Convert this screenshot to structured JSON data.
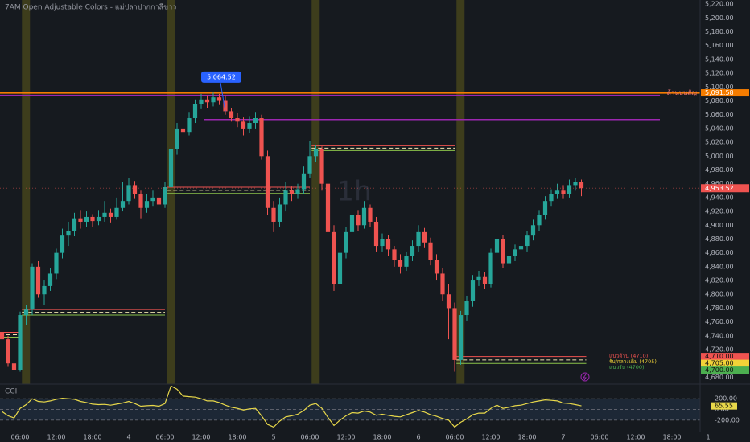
{
  "header": {
    "title": "7AM Open Adjustable Colors - แม่ปลาปากกาสีขาว"
  },
  "chart_data": {
    "type": "candlestick",
    "watermark": "1h",
    "up_color": "#26a69a",
    "down_color": "#ef5350",
    "xlim": [
      -3.333,
      114
    ],
    "xticks": [
      {
        "value": 0,
        "label": "06:00"
      },
      {
        "value": 6,
        "label": "12:00"
      },
      {
        "value": 12,
        "label": "18:00"
      },
      {
        "value": 18,
        "label": "4"
      },
      {
        "value": 24,
        "label": "06:00"
      },
      {
        "value": 30,
        "label": "12:00"
      },
      {
        "value": 36,
        "label": "18:00"
      },
      {
        "value": 42,
        "label": "5"
      },
      {
        "value": 48,
        "label": "06:00"
      },
      {
        "value": 54,
        "label": "12:00"
      },
      {
        "value": 60,
        "label": "18:00"
      },
      {
        "value": 66,
        "label": "6"
      },
      {
        "value": 72,
        "label": "06:00"
      },
      {
        "value": 78,
        "label": "12:00"
      },
      {
        "value": 84,
        "label": "18:00"
      },
      {
        "value": 90,
        "label": "7"
      },
      {
        "value": 96,
        "label": "06:00"
      },
      {
        "value": 102,
        "label": "12:00"
      },
      {
        "value": 108,
        "label": "18:00"
      },
      {
        "value": 114,
        "label": "1"
      }
    ],
    "ylim": [
      4670,
      5226
    ],
    "yticks": [
      {
        "value": 4680,
        "label": "4,680.00"
      },
      {
        "value": 4700,
        "label": "4,700.00"
      },
      {
        "value": 4720,
        "label": "4,720.00"
      },
      {
        "value": 4740,
        "label": "4,740.00"
      },
      {
        "value": 4760,
        "label": "4,760.00"
      },
      {
        "value": 4780,
        "label": "4,780.00"
      },
      {
        "value": 4800,
        "label": "4,800.00"
      },
      {
        "value": 4820,
        "label": "4,820.00"
      },
      {
        "value": 4840,
        "label": "4,840.00"
      },
      {
        "value": 4860,
        "label": "4,860.00"
      },
      {
        "value": 4880,
        "label": "4,880.00"
      },
      {
        "value": 4900,
        "label": "4,900.00"
      },
      {
        "value": 4920,
        "label": "4,920.00"
      },
      {
        "value": 4940,
        "label": "4,940.00"
      },
      {
        "value": 4960,
        "label": "4,960.00"
      },
      {
        "value": 4980,
        "label": "4,980.00"
      },
      {
        "value": 5000,
        "label": "5,000.00"
      },
      {
        "value": 5020,
        "label": "5,020.00"
      },
      {
        "value": 5040,
        "label": "5,040.00"
      },
      {
        "value": 5060,
        "label": "5,060.00"
      },
      {
        "value": 5080,
        "label": "5,080.00"
      },
      {
        "value": 5100,
        "label": "5,100.00"
      },
      {
        "value": 5120,
        "label": "5,120.00"
      },
      {
        "value": 5140,
        "label": "5,140.00"
      },
      {
        "value": 5160,
        "label": "5,160.00"
      },
      {
        "value": 5180,
        "label": "5,180.00"
      },
      {
        "value": 5200,
        "label": "5,200.00"
      },
      {
        "value": 5220,
        "label": "5,220.00"
      }
    ],
    "x": [
      -3,
      -2,
      -1,
      0,
      1,
      2,
      3,
      4,
      5,
      6,
      7,
      8,
      9,
      10,
      11,
      12,
      13,
      14,
      15,
      16,
      17,
      18,
      19,
      20,
      21,
      22,
      23,
      24,
      25,
      26,
      27,
      28,
      29,
      30,
      31,
      32,
      33,
      34,
      35,
      36,
      37,
      38,
      39,
      40,
      41,
      42,
      43,
      44,
      45,
      46,
      47,
      48,
      49,
      50,
      51,
      52,
      53,
      54,
      55,
      56,
      57,
      58,
      59,
      60,
      61,
      62,
      63,
      64,
      65,
      66,
      67,
      68,
      69,
      70,
      71,
      72,
      73,
      74,
      75,
      76,
      77,
      78,
      79,
      80,
      81,
      82,
      83,
      84,
      85,
      86,
      87,
      88,
      89,
      90,
      91,
      92,
      93
    ],
    "ohlc": [
      [
        4745,
        4750,
        4728,
        4735
      ],
      [
        4735,
        4740,
        4695,
        4700
      ],
      [
        4700,
        4712,
        4683,
        4690
      ],
      [
        4690,
        4775,
        4688,
        4770
      ],
      [
        4770,
        4785,
        4755,
        4778
      ],
      [
        4778,
        4845,
        4770,
        4840
      ],
      [
        4840,
        4848,
        4795,
        4800
      ],
      [
        4800,
        4820,
        4785,
        4812
      ],
      [
        4812,
        4838,
        4805,
        4830
      ],
      [
        4830,
        4866,
        4822,
        4860
      ],
      [
        4860,
        4895,
        4852,
        4885
      ],
      [
        4885,
        4905,
        4870,
        4892
      ],
      [
        4892,
        4918,
        4884,
        4910
      ],
      [
        4910,
        4922,
        4895,
        4905
      ],
      [
        4905,
        4920,
        4898,
        4912
      ],
      [
        4912,
        4916,
        4898,
        4906
      ],
      [
        4906,
        4922,
        4900,
        4912
      ],
      [
        4912,
        4935,
        4905,
        4918
      ],
      [
        4918,
        4924,
        4904,
        4912
      ],
      [
        4912,
        4940,
        4908,
        4925
      ],
      [
        4925,
        4962,
        4920,
        4935
      ],
      [
        4935,
        4968,
        4930,
        4958
      ],
      [
        4958,
        4964,
        4938,
        4945
      ],
      [
        4945,
        4950,
        4910,
        4925
      ],
      [
        4925,
        4945,
        4918,
        4935
      ],
      [
        4935,
        4950,
        4928,
        4940
      ],
      [
        4940,
        4946,
        4922,
        4930
      ],
      [
        4930,
        4962,
        4925,
        4955
      ],
      [
        4955,
        5018,
        4950,
        5010
      ],
      [
        5010,
        5048,
        5002,
        5040
      ],
      [
        5040,
        5052,
        5025,
        5035
      ],
      [
        5035,
        5064,
        5030,
        5055
      ],
      [
        5055,
        5082,
        5048,
        5075
      ],
      [
        5075,
        5090,
        5068,
        5082
      ],
      [
        5082,
        5088,
        5070,
        5078
      ],
      [
        5078,
        5092,
        5072,
        5085
      ],
      [
        5085,
        5090,
        5074,
        5080
      ],
      [
        5080,
        5088,
        5060,
        5065
      ],
      [
        5065,
        5070,
        5050,
        5055
      ],
      [
        5055,
        5062,
        5042,
        5050
      ],
      [
        5050,
        5056,
        5030,
        5040
      ],
      [
        5040,
        5058,
        5034,
        5048
      ],
      [
        5048,
        5064,
        5040,
        5055
      ],
      [
        5055,
        5060,
        4995,
        5000
      ],
      [
        5000,
        5008,
        4915,
        4925
      ],
      [
        4925,
        4935,
        4890,
        4905
      ],
      [
        4905,
        4940,
        4898,
        4930
      ],
      [
        4930,
        4962,
        4920,
        4950
      ],
      [
        4950,
        4956,
        4935,
        4945
      ],
      [
        4945,
        4960,
        4938,
        4952
      ],
      [
        4952,
        4985,
        4945,
        4975
      ],
      [
        4975,
        5022,
        4968,
        5000
      ],
      [
        5000,
        5016,
        4992,
        5010
      ],
      [
        5010,
        5014,
        4950,
        4960
      ],
      [
        4960,
        4968,
        4880,
        4890
      ],
      [
        4890,
        4900,
        4805,
        4815
      ],
      [
        4815,
        4868,
        4808,
        4860
      ],
      [
        4860,
        4898,
        4852,
        4890
      ],
      [
        4890,
        4925,
        4882,
        4915
      ],
      [
        4915,
        4922,
        4892,
        4900
      ],
      [
        4900,
        4935,
        4895,
        4925
      ],
      [
        4925,
        4930,
        4898,
        4905
      ],
      [
        4905,
        4912,
        4862,
        4870
      ],
      [
        4870,
        4888,
        4862,
        4880
      ],
      [
        4880,
        4886,
        4855,
        4865
      ],
      [
        4865,
        4870,
        4840,
        4850
      ],
      [
        4850,
        4858,
        4830,
        4840
      ],
      [
        4840,
        4862,
        4834,
        4855
      ],
      [
        4855,
        4878,
        4848,
        4870
      ],
      [
        4870,
        4900,
        4862,
        4890
      ],
      [
        4890,
        4896,
        4868,
        4875
      ],
      [
        4875,
        4882,
        4842,
        4850
      ],
      [
        4850,
        4858,
        4820,
        4830
      ],
      [
        4830,
        4838,
        4790,
        4800
      ],
      [
        4800,
        4815,
        4735,
        4780
      ],
      [
        4780,
        4788,
        4688,
        4705
      ],
      [
        4705,
        4776,
        4698,
        4770
      ],
      [
        4770,
        4798,
        4762,
        4790
      ],
      [
        4790,
        4828,
        4782,
        4820
      ],
      [
        4820,
        4834,
        4812,
        4825
      ],
      [
        4825,
        4832,
        4808,
        4815
      ],
      [
        4815,
        4866,
        4810,
        4860
      ],
      [
        4860,
        4892,
        4852,
        4880
      ],
      [
        4880,
        4886,
        4838,
        4845
      ],
      [
        4845,
        4862,
        4838,
        4855
      ],
      [
        4855,
        4872,
        4848,
        4865
      ],
      [
        4865,
        4878,
        4858,
        4870
      ],
      [
        4870,
        4892,
        4862,
        4885
      ],
      [
        4885,
        4908,
        4878,
        4900
      ],
      [
        4900,
        4922,
        4892,
        4915
      ],
      [
        4915,
        4942,
        4908,
        4935
      ],
      [
        4935,
        4952,
        4928,
        4945
      ],
      [
        4945,
        4960,
        4938,
        4950
      ],
      [
        4950,
        4958,
        4938,
        4945
      ],
      [
        4945,
        4966,
        4940,
        4958
      ],
      [
        4958,
        4968,
        4950,
        4962
      ],
      [
        4962,
        4966,
        4942,
        4953.52
      ]
    ],
    "last_label": "4,953.52",
    "callout": {
      "x": 34,
      "value": 5064.52,
      "label": "5,064.52"
    },
    "sessions": [
      {
        "start": -3.333,
        "end": 0,
        "high": 4745,
        "low": 4738
      },
      {
        "start": 0.3,
        "end": 24,
        "high": 4778,
        "low": 4770
      },
      {
        "start": 24.3,
        "end": 48,
        "high": 4955,
        "low": 4946
      },
      {
        "start": 48.3,
        "end": 72,
        "high": 5015,
        "low": 5008
      },
      {
        "start": 72.3,
        "end": 93.8,
        "high": 4710,
        "low": 4700
      }
    ],
    "session_band_color": "#3d3d1c",
    "lines": [
      {
        "value": 5088,
        "start": -3.333,
        "end": 106,
        "color": "#9c27b0"
      },
      {
        "value": 5053,
        "start": 30.5,
        "end": 106,
        "color": "#9c27b0"
      }
    ],
    "levels": [
      {
        "value": 5091.58,
        "label": "5,091.58",
        "text": "ด้านบนสัญ",
        "color": "#f57c00"
      },
      {
        "value": 4710,
        "label": "4,710.00",
        "text": "แนวต้าน (4710)",
        "color": "#ef5350"
      },
      {
        "value": 4705,
        "label": "4,705.00",
        "text": "รับ/กลางเดิม (4705)",
        "color": "#f2d338"
      },
      {
        "value": 4700,
        "label": "4,700.00",
        "text": "แนวรับ (4700)",
        "color": "#4caf50"
      }
    ],
    "indicator": {
      "type": "line",
      "name": "CCI",
      "color": "#e8d84a",
      "ylim": [
        -430,
        475
      ],
      "yticks": [
        {
          "value": 200,
          "label": "200.00"
        },
        {
          "value": 0,
          "label": "0.00"
        },
        {
          "value": -200,
          "label": "-200.00"
        }
      ],
      "last_label": "65.55",
      "values": [
        -40,
        -120,
        -160,
        20,
        90,
        200,
        150,
        140,
        160,
        190,
        210,
        200,
        190,
        150,
        130,
        100,
        90,
        95,
        80,
        100,
        120,
        150,
        110,
        60,
        70,
        75,
        60,
        110,
        440,
        380,
        250,
        240,
        230,
        200,
        160,
        160,
        130,
        80,
        40,
        20,
        -10,
        10,
        20,
        -120,
        -280,
        -330,
        -220,
        -140,
        -120,
        -90,
        -20,
        80,
        110,
        20,
        -150,
        -300,
        -200,
        -120,
        -60,
        -70,
        -30,
        -50,
        -110,
        -90,
        -110,
        -130,
        -140,
        -100,
        -60,
        -20,
        -50,
        -100,
        -130,
        -170,
        -200,
        -330,
        -240,
        -180,
        -100,
        -70,
        -70,
        20,
        80,
        20,
        40,
        70,
        80,
        110,
        140,
        160,
        180,
        170,
        160,
        120,
        110,
        90,
        65.55
      ]
    }
  }
}
